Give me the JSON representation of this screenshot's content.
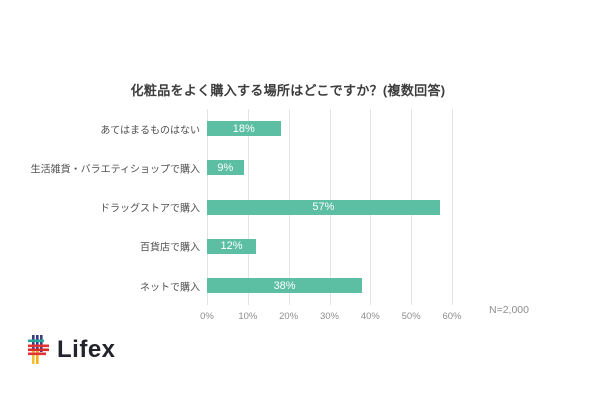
{
  "chart_data": {
    "type": "bar",
    "orientation": "horizontal",
    "title": "化粧品をよく購入する場所はどこですか？(複数回答)",
    "categories": [
      "あてはまるものはない",
      "生活雑貨・バラエティショップで購入",
      "ドラッグストアで購入",
      "百貨店で購入",
      "ネットで購入"
    ],
    "values": [
      18,
      9,
      57,
      12,
      38
    ],
    "value_labels": [
      "18%",
      "9%",
      "57%",
      "12%",
      "38%"
    ],
    "xlim": [
      0,
      60
    ],
    "x_tick_values": [
      0,
      10,
      20,
      30,
      40,
      50,
      60
    ],
    "x_tick_labels": [
      "0%",
      "10%",
      "20%",
      "30%",
      "40%",
      "50%",
      "60%"
    ],
    "grid": true,
    "legend": "none",
    "bar_color": "#5CBEA3",
    "note": "N=2,000"
  },
  "footer": {
    "logo_text": "Lifex"
  },
  "colors": {
    "bar": "#5CBEA3",
    "gridline": "#e4e4e4",
    "title_text": "#3d3d3d",
    "category_text": "#4f4f4f",
    "tick_text": "#8e8e8e",
    "bar_value_text": "#ffffff",
    "logo_text": "#23242b",
    "background": "#ffffff"
  }
}
